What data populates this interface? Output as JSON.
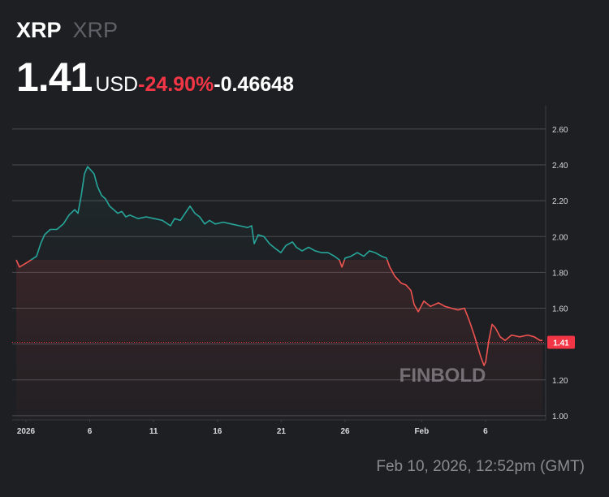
{
  "header": {
    "symbol": "XRP",
    "name": "XRP",
    "currency": "USD",
    "change_percent": "-24.90%",
    "change": "-0.46648"
  },
  "footer": "Feb 10, 2026, 12:52pm (GMT)",
  "chart_data": {
    "type": "line",
    "watermark": "FINBOLD",
    "price": 1.41,
    "price_color": "#f23645",
    "up_color": "#26a69a",
    "down_color": "#ef5350",
    "grid": true,
    "xlim": [
      -0.08,
      41.71
    ],
    "xticks": [
      {
        "value": 1,
        "label": "2026"
      },
      6,
      11,
      16,
      21,
      26,
      {
        "value": 32,
        "label": "Feb"
      },
      {
        "value": 37,
        "label": "6"
      }
    ],
    "ylim": [
      0.986,
      2.731
    ],
    "yticks": [
      {
        "value": 1,
        "label": "1.00"
      },
      {
        "value": 1.2,
        "label": "1.20"
      },
      {
        "value": 1.4,
        "label": "1.40"
      },
      {
        "value": 1.6,
        "label": "1.60"
      },
      {
        "value": 1.8,
        "label": "1.80"
      },
      {
        "value": 2,
        "label": "2.00"
      },
      {
        "value": 2.2,
        "label": "2.20"
      },
      {
        "value": 2.4,
        "label": "2.40"
      },
      {
        "value": 2.6,
        "label": "2.60"
      }
    ],
    "x": [
      0.24,
      0.49,
      1.19,
      1.83,
      2.15,
      2.46,
      2.91,
      3.42,
      3.93,
      4.37,
      4.82,
      5.07,
      5.33,
      5.58,
      5.83,
      6.09,
      6.34,
      6.6,
      6.92,
      7.23,
      7.55,
      7.87,
      8.19,
      8.51,
      8.82,
      9.14,
      9.78,
      10.41,
      11.05,
      11.69,
      12.32,
      12.64,
      13.09,
      13.47,
      13.85,
      14.23,
      14.61,
      15.0,
      15.38,
      15.82,
      16.46,
      17.09,
      17.73,
      18.37,
      18.68,
      18.88,
      19.19,
      19.64,
      20.08,
      20.59,
      20.97,
      21.36,
      21.87,
      22.18,
      22.63,
      23.14,
      23.65,
      24.16,
      24.66,
      25.17,
      25.55,
      25.75,
      26.0,
      26.45,
      26.95,
      27.46,
      27.91,
      28.35,
      28.86,
      29.24,
      29.5,
      29.88,
      30.39,
      30.77,
      31.15,
      31.41,
      31.73,
      32.17,
      32.68,
      33.32,
      33.82,
      34.33,
      34.84,
      35.35,
      35.73,
      36.11,
      36.37,
      36.62,
      36.88,
      37.01,
      37.26,
      37.51,
      37.77,
      38.15,
      38.53,
      39.04,
      39.68,
      40.31,
      40.82,
      41.27,
      41.46
    ],
    "values": [
      1.87,
      1.83,
      1.86,
      1.89,
      1.96,
      2.01,
      2.04,
      2.04,
      2.07,
      2.12,
      2.15,
      2.13,
      2.23,
      2.35,
      2.39,
      2.37,
      2.35,
      2.28,
      2.23,
      2.21,
      2.17,
      2.15,
      2.13,
      2.14,
      2.11,
      2.12,
      2.1,
      2.11,
      2.1,
      2.09,
      2.06,
      2.1,
      2.09,
      2.13,
      2.17,
      2.13,
      2.11,
      2.07,
      2.09,
      2.07,
      2.08,
      2.07,
      2.06,
      2.05,
      2.06,
      1.96,
      2.01,
      2.0,
      1.96,
      1.93,
      1.91,
      1.95,
      1.97,
      1.94,
      1.92,
      1.94,
      1.92,
      1.91,
      1.91,
      1.89,
      1.87,
      1.83,
      1.88,
      1.89,
      1.91,
      1.89,
      1.92,
      1.91,
      1.89,
      1.88,
      1.83,
      1.78,
      1.74,
      1.73,
      1.7,
      1.62,
      1.58,
      1.64,
      1.61,
      1.63,
      1.61,
      1.6,
      1.59,
      1.6,
      1.53,
      1.45,
      1.39,
      1.33,
      1.28,
      1.3,
      1.42,
      1.51,
      1.49,
      1.44,
      1.42,
      1.45,
      1.44,
      1.45,
      1.44,
      1.42,
      1.42
    ]
  }
}
